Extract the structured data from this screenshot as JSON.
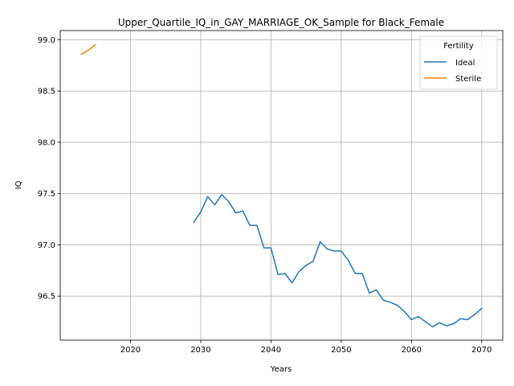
{
  "chart_data": {
    "type": "line",
    "title": "Upper_Quartile_IQ_in_GAY_MARRIAGE_OK_Sample for Black_Female",
    "xlabel": "Years",
    "ylabel": "IQ",
    "xlim": [
      2010,
      2073
    ],
    "ylim": [
      96.07,
      99.09
    ],
    "xticks": [
      2020,
      2030,
      2040,
      2050,
      2060,
      2070
    ],
    "yticks": [
      96.5,
      97.0,
      97.5,
      98.0,
      98.5,
      99.0
    ],
    "xtick_labels": [
      "2020",
      "2030",
      "2040",
      "2050",
      "2060",
      "2070"
    ],
    "ytick_labels": [
      "96.5",
      "97.0",
      "97.5",
      "98.0",
      "98.5",
      "99.0"
    ],
    "grid": true,
    "legend": {
      "title": "Fertility",
      "placement": "top-right"
    },
    "series": [
      {
        "name": "Ideal",
        "color": "#1f77b4",
        "x": [
          2029,
          2030,
          2031,
          2032,
          2033,
          2034,
          2035,
          2036,
          2037,
          2038,
          2039,
          2040,
          2041,
          2042,
          2043,
          2044,
          2045,
          2046,
          2047,
          2048,
          2049,
          2050,
          2051,
          2052,
          2053,
          2054,
          2055,
          2056,
          2057,
          2058,
          2059,
          2060,
          2061,
          2062,
          2063,
          2064,
          2065,
          2066,
          2067,
          2068,
          2069,
          2070
        ],
        "y": [
          97.22,
          97.32,
          97.47,
          97.39,
          97.49,
          97.42,
          97.31,
          97.33,
          97.19,
          97.19,
          96.97,
          96.97,
          96.71,
          96.72,
          96.63,
          96.74,
          96.8,
          96.84,
          97.03,
          96.96,
          96.94,
          96.94,
          96.85,
          96.72,
          96.72,
          96.53,
          96.56,
          96.46,
          96.44,
          96.41,
          96.35,
          96.27,
          96.3,
          96.25,
          96.2,
          96.24,
          96.21,
          96.23,
          96.28,
          96.27,
          96.32,
          96.38
        ]
      },
      {
        "name": "Sterile",
        "color": "#ff7f0e",
        "x": [
          2013,
          2014,
          2015
        ],
        "y": [
          98.86,
          98.9,
          98.95
        ]
      }
    ]
  }
}
